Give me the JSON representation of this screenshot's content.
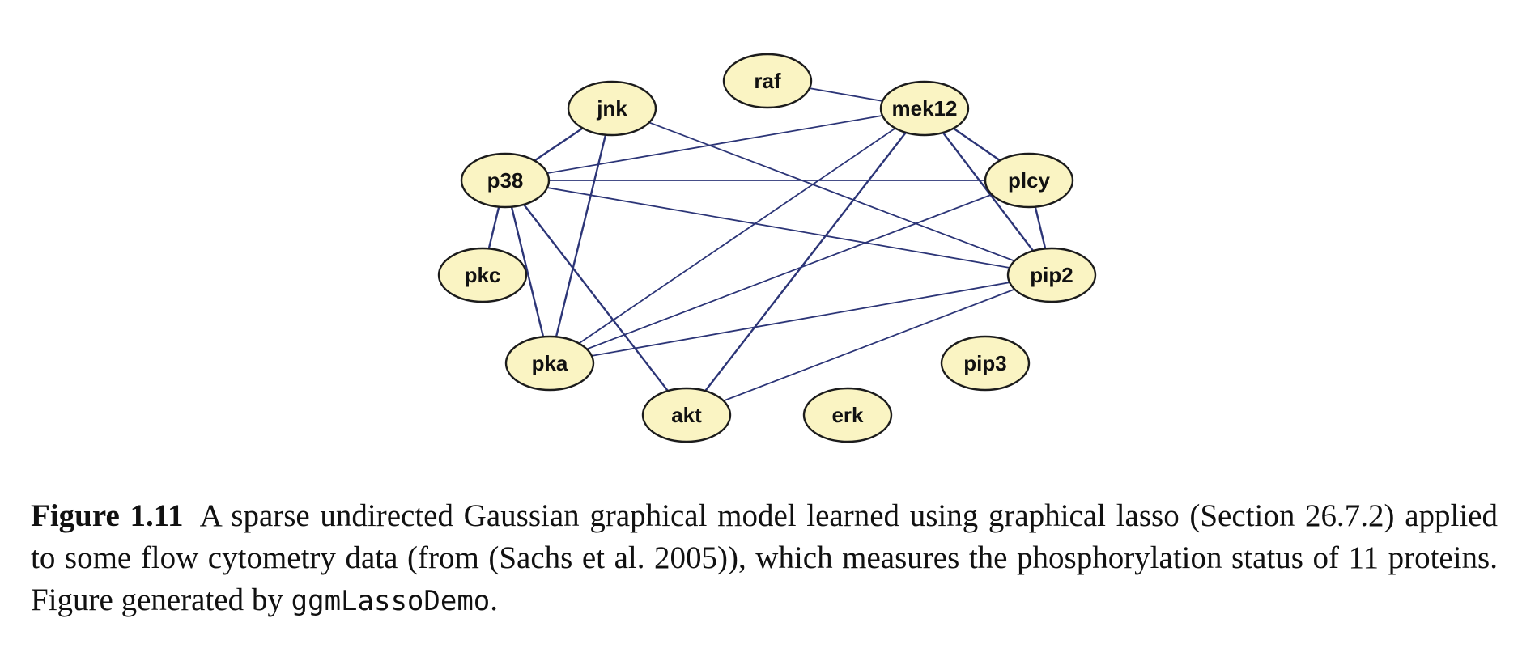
{
  "figure": {
    "nodes": [
      {
        "id": "raf",
        "label": "raf"
      },
      {
        "id": "jnk",
        "label": "jnk"
      },
      {
        "id": "mek12",
        "label": "mek12"
      },
      {
        "id": "p38",
        "label": "p38"
      },
      {
        "id": "plcy",
        "label": "plcy"
      },
      {
        "id": "pkc",
        "label": "pkc"
      },
      {
        "id": "pip2",
        "label": "pip2"
      },
      {
        "id": "pka",
        "label": "pka"
      },
      {
        "id": "pip3",
        "label": "pip3"
      },
      {
        "id": "akt",
        "label": "akt"
      },
      {
        "id": "erk",
        "label": "erk"
      }
    ],
    "edges": [
      [
        "raf",
        "mek12"
      ],
      [
        "jnk",
        "p38"
      ],
      [
        "jnk",
        "pka"
      ],
      [
        "jnk",
        "pip2"
      ],
      [
        "mek12",
        "p38"
      ],
      [
        "mek12",
        "plcy"
      ],
      [
        "mek12",
        "pip2"
      ],
      [
        "mek12",
        "pka"
      ],
      [
        "mek12",
        "akt"
      ],
      [
        "p38",
        "plcy"
      ],
      [
        "p38",
        "pip2"
      ],
      [
        "p38",
        "pkc"
      ],
      [
        "p38",
        "pka"
      ],
      [
        "p38",
        "akt"
      ],
      [
        "plcy",
        "pip2"
      ],
      [
        "plcy",
        "pka"
      ],
      [
        "pip2",
        "pka"
      ],
      [
        "pip2",
        "akt"
      ]
    ]
  },
  "caption": {
    "label": "Figure 1.11",
    "text_before_code": "A sparse undirected Gaussian graphical model learned using graphical lasso (Section 26.7.2) applied to some flow cytometry data (from (Sachs et al. 2005)), which measures the phosphorylation status of 11 proteins. Figure generated by ",
    "code": "ggmLassoDemo",
    "text_after_code": "."
  }
}
